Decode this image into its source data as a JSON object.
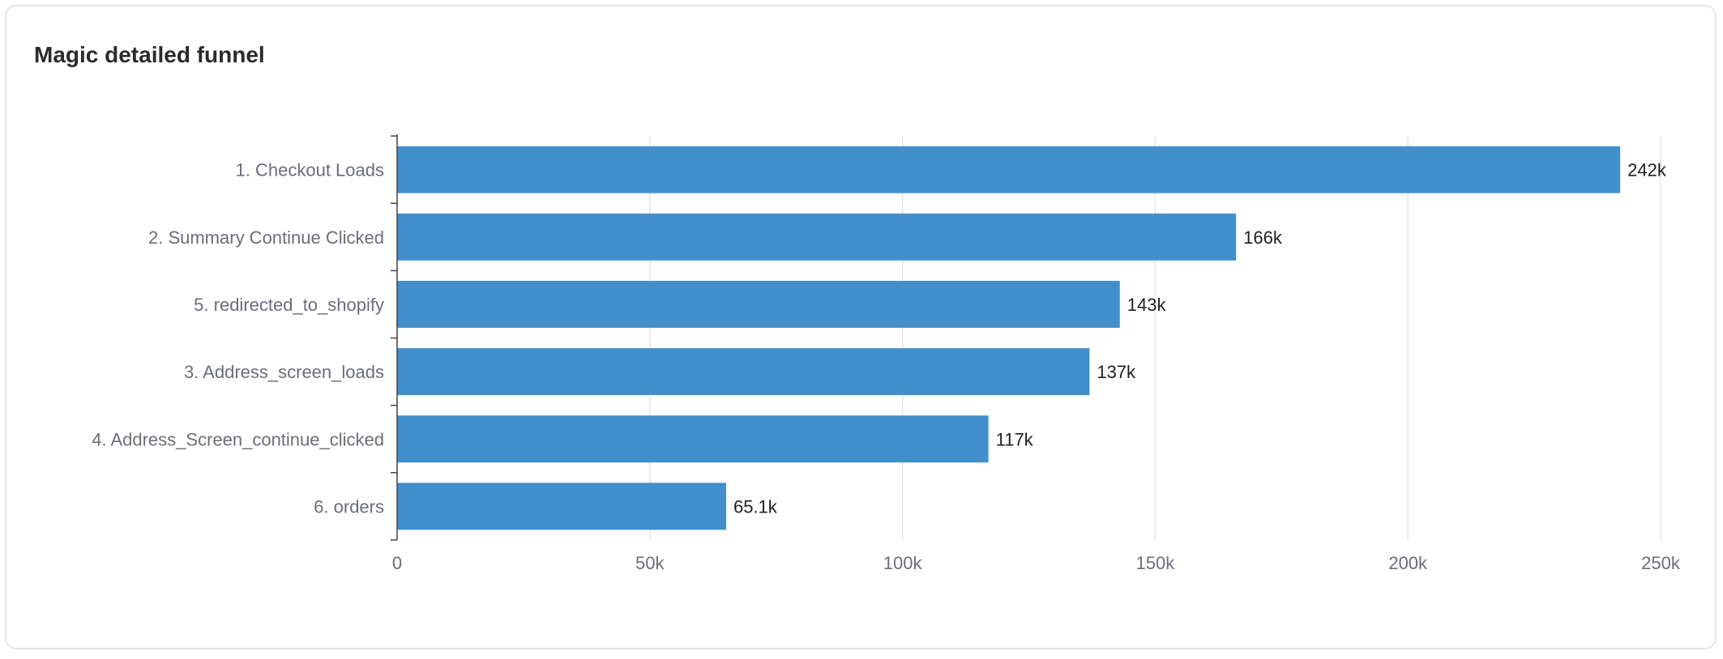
{
  "card": {
    "title": "Magic detailed funnel"
  },
  "chart_data": {
    "type": "bar",
    "orientation": "horizontal",
    "title": "Magic detailed funnel",
    "categories": [
      "1. Checkout Loads",
      "2. Summary Continue Clicked",
      "5. redirected_to_shopify",
      "3. Address_screen_loads",
      "4. Address_Screen_continue_clicked",
      "6. orders"
    ],
    "values": [
      242000,
      166000,
      143000,
      137000,
      117000,
      65100
    ],
    "value_labels": [
      "242k",
      "166k",
      "143k",
      "137k",
      "117k",
      "65.1k"
    ],
    "xlim": [
      0,
      250000
    ],
    "x_ticks": [
      0,
      50000,
      100000,
      150000,
      200000,
      250000
    ],
    "x_tick_labels": [
      "0",
      "50k",
      "100k",
      "150k",
      "200k",
      "250k"
    ],
    "grid": true,
    "legend": "none",
    "bar_color": "#428fcc"
  }
}
